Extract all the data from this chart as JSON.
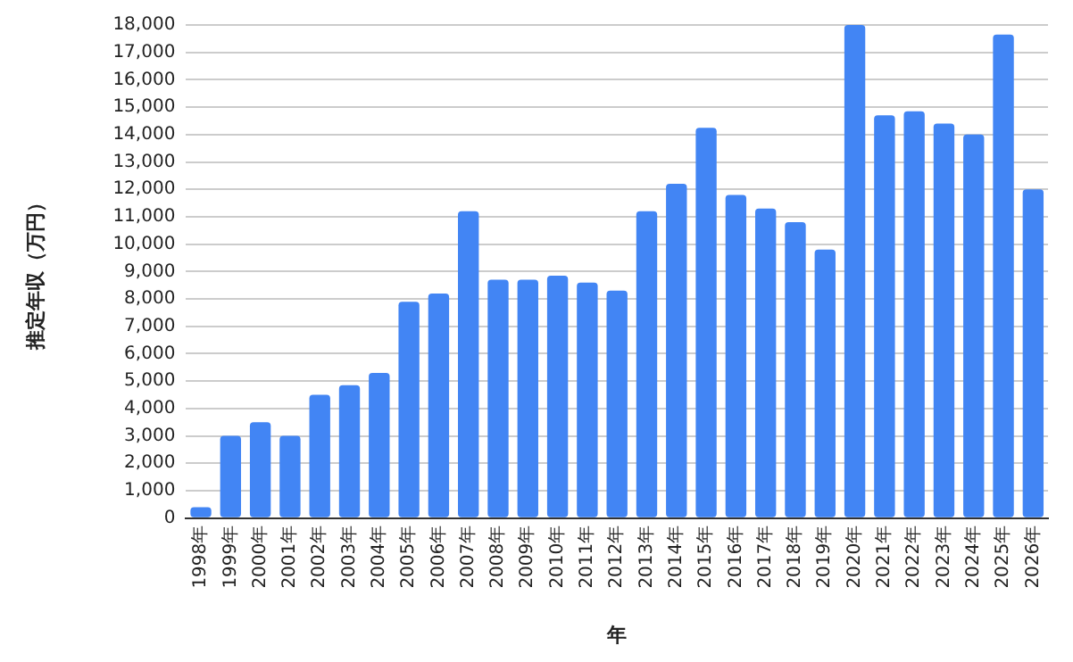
{
  "chart_data": {
    "type": "bar",
    "xlabel": "年",
    "ylabel": "推定年収（万円）",
    "categories": [
      "1998年",
      "1999年",
      "2000年",
      "2001年",
      "2002年",
      "2003年",
      "2004年",
      "2005年",
      "2006年",
      "2007年",
      "2008年",
      "2009年",
      "2010年",
      "2011年",
      "2012年",
      "2013年",
      "2014年",
      "2015年",
      "2016年",
      "2017年",
      "2018年",
      "2019年",
      "2020年",
      "2021年",
      "2022年",
      "2023年",
      "2024年",
      "2025年",
      "2026年"
    ],
    "values": [
      400,
      3000,
      3500,
      3000,
      4500,
      4850,
      5300,
      7900,
      8200,
      11200,
      8700,
      8700,
      8850,
      8600,
      8300,
      11200,
      12200,
      14250,
      11800,
      11300,
      10800,
      9800,
      18000,
      14700,
      14850,
      14400,
      14000,
      17650,
      12000
    ],
    "color": "#4285f4",
    "ylim": [
      0,
      18000
    ],
    "yticks": [
      {
        "value": 0,
        "label": "0"
      },
      {
        "value": 1000,
        "label": "1,000"
      },
      {
        "value": 2000,
        "label": "2,000"
      },
      {
        "value": 3000,
        "label": "3,000"
      },
      {
        "value": 4000,
        "label": "4,000"
      },
      {
        "value": 5000,
        "label": "5,000"
      },
      {
        "value": 6000,
        "label": "6,000"
      },
      {
        "value": 7000,
        "label": "7,000"
      },
      {
        "value": 8000,
        "label": "8,000"
      },
      {
        "value": 9000,
        "label": "9,000"
      },
      {
        "value": 10000,
        "label": "10,000"
      },
      {
        "value": 11000,
        "label": "11,000"
      },
      {
        "value": 12000,
        "label": "12,000"
      },
      {
        "value": 13000,
        "label": "13,000"
      },
      {
        "value": 14000,
        "label": "14,000"
      },
      {
        "value": 15000,
        "label": "15,000"
      },
      {
        "value": 16000,
        "label": "16,000"
      },
      {
        "value": 17000,
        "label": "17,000"
      },
      {
        "value": 18000,
        "label": "18,000"
      }
    ],
    "grid": "y",
    "legend": false
  }
}
